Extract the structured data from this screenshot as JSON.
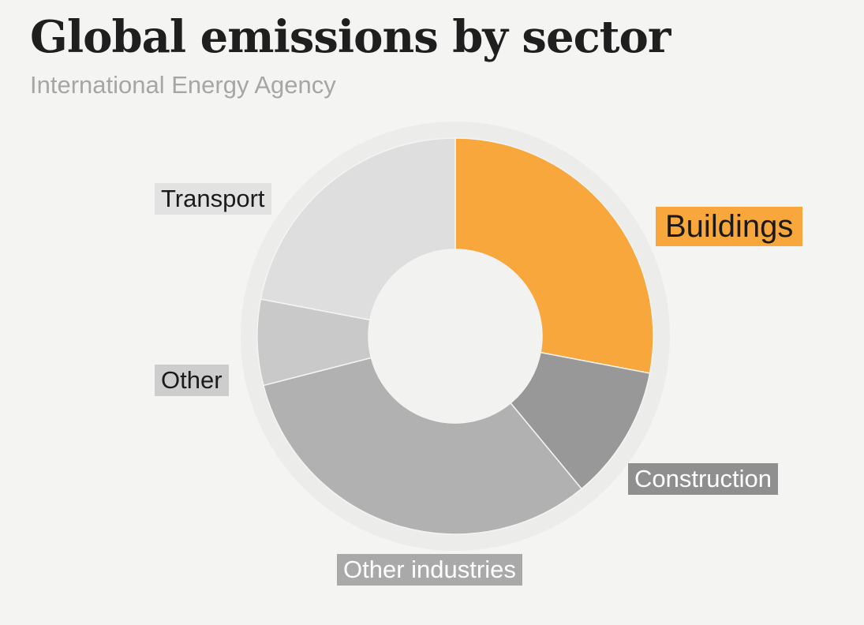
{
  "chart_data": {
    "type": "pie",
    "style": "donut",
    "title": "Global emissions by sector",
    "subtitle": "International Energy Agency",
    "slices": [
      {
        "label": "Buildings",
        "value": 28,
        "color": "#f8a73c",
        "label_bg": "#f8a73c",
        "label_color": "#1a1a1a"
      },
      {
        "label": "Construction",
        "value": 11,
        "color": "#989898",
        "label_bg": "#8f8f8f",
        "label_color": "#ffffff"
      },
      {
        "label": "Other industries",
        "value": 32,
        "color": "#b1b1b1",
        "label_bg": "#a9a9a9",
        "label_color": "#ffffff"
      },
      {
        "label": "Other",
        "value": 7,
        "color": "#c9c9c9",
        "label_bg": "#cdcdcd",
        "label_color": "#1a1a1a"
      },
      {
        "label": "Transport",
        "value": 22,
        "color": "#dedede",
        "label_bg": "#e2e2e2",
        "label_color": "#1a1a1a"
      }
    ],
    "highlight": "Buildings"
  }
}
